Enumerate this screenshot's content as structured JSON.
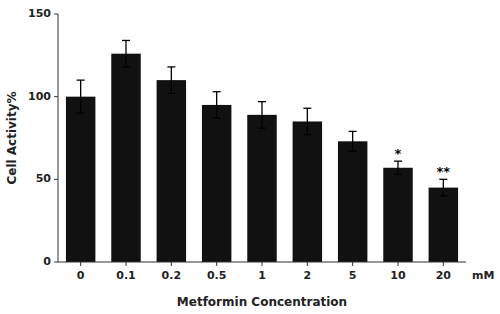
{
  "chart_data": {
    "type": "bar",
    "categories": [
      "0",
      "0.1",
      "0.2",
      "0.5",
      "1",
      "2",
      "5",
      "10",
      "20"
    ],
    "values": [
      100,
      126,
      110,
      95,
      89,
      85,
      73,
      57,
      45
    ],
    "errors": [
      10,
      8,
      8,
      8,
      8,
      8,
      6,
      4,
      5
    ],
    "color": "#111111",
    "y_label": "Cell Activity%",
    "x_label": "Metformin Concentration",
    "annotations": [
      {
        "category": "10",
        "text": "*"
      },
      {
        "category": "20",
        "text": "**"
      },
      {
        "text": "mM"
      }
    ],
    "ylim": [
      0,
      150
    ],
    "yticks": [
      0,
      50,
      100,
      150
    ],
    "grid": false
  }
}
